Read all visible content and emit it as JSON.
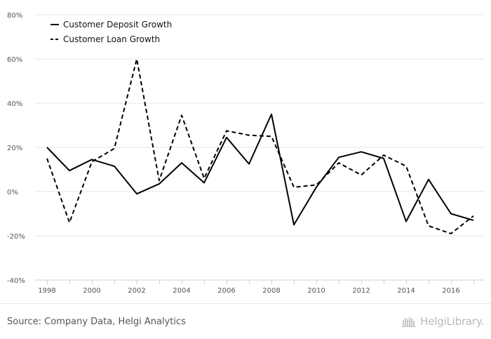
{
  "chart_data": {
    "type": "line",
    "title": "",
    "xlabel": "",
    "ylabel": "",
    "x": [
      1998,
      1999,
      2000,
      2001,
      2002,
      2003,
      2004,
      2005,
      2006,
      2007,
      2008,
      2009,
      2010,
      2011,
      2012,
      2013,
      2014,
      2015,
      2016,
      2017
    ],
    "x_tick_labels": [
      "1998",
      "2000",
      "2002",
      "2004",
      "2006",
      "2008",
      "2010",
      "2012",
      "2014",
      "2016"
    ],
    "y_tick_labels": [
      "80%",
      "60%",
      "40%",
      "20%",
      "0%",
      "-20%",
      "-40%"
    ],
    "ylim": [
      -40,
      80
    ],
    "grid": "horizontal",
    "legend_position": "top-left",
    "series": [
      {
        "name": "Customer Deposit Growth",
        "style": "solid",
        "color": "#000000",
        "values": [
          20,
          9.5,
          14.5,
          11.5,
          -1,
          3.5,
          13,
          4,
          24.5,
          12.5,
          35,
          -15,
          2,
          15.5,
          18,
          15,
          -13.5,
          5.5,
          -10,
          -13
        ]
      },
      {
        "name": "Customer Loan Growth",
        "style": "dashed",
        "color": "#000000",
        "values": [
          15,
          -14,
          13.5,
          19.5,
          60,
          5,
          34.5,
          6,
          27.5,
          25.5,
          25,
          2,
          3,
          13,
          7.5,
          16.5,
          11.5,
          -15.5,
          -19,
          -11
        ]
      }
    ]
  },
  "footer": {
    "source": "Source: Company Data, Helgi Analytics",
    "brand": "HelgiLibrary."
  }
}
